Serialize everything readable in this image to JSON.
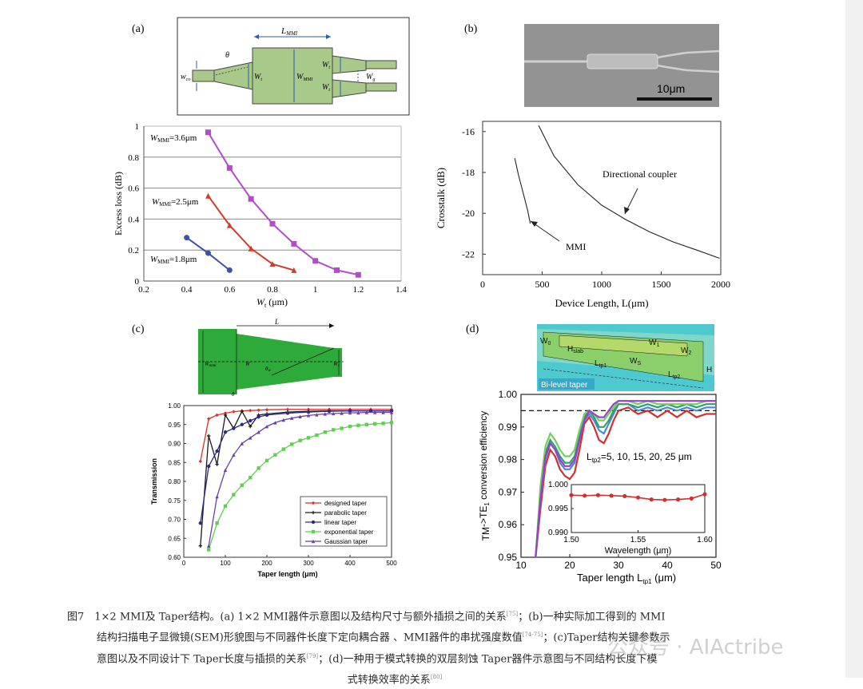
{
  "panels": {
    "a": "(a)",
    "b": "(b)",
    "c": "(c)",
    "d": "(d)"
  },
  "diagram_a": {
    "L_MMI": "L",
    "L_MMI_sub": "MMI",
    "theta": "θ",
    "w_co": "w",
    "w_co_sub": "co",
    "W_t": "W",
    "W_t_sub": "t",
    "W_MMI": "W",
    "W_MMI_sub": "MMI",
    "W_t2": "W",
    "W_t2_sub": "t",
    "W_t3": "W",
    "W_t3_sub": "t",
    "W_g": "W",
    "W_g_sub": "g"
  },
  "sem_b": {
    "scale_bar": "10μm"
  },
  "diagram_c": {
    "L": "L",
    "W_mmi": "W",
    "W_mmi_sub": "mmi",
    "W": "W",
    "theta": "θ",
    "theta_sub": "w",
    "W_s": "W",
    "W_s_sub": "s",
    "theta_bottom": "θ"
  },
  "diagram_d": {
    "W0": "W",
    "W0_sub": "0",
    "W1": "W",
    "W1_sub": "1",
    "W2": "W",
    "W2_sub": "2",
    "Hslab": "H",
    "Hslab_sub": "slab",
    "WS": "W",
    "WS_sub": "S",
    "Ltp1": "L",
    "Ltp1_sub": "tp1",
    "Ltp2": "L",
    "Ltp2_sub": "tp2",
    "H": "H",
    "tag": "Bi-level taper"
  },
  "chart_data": [
    {
      "type": "line",
      "xlabel": "W",
      "xlabel_sub": "t",
      "xlabel_unit": " (μm)",
      "ylabel": "Excess loss (dB)",
      "xlim": [
        0.2,
        1.4
      ],
      "ylim": [
        0,
        1
      ],
      "xticks": [
        "0.2",
        "0.4",
        "0.6",
        "0.8",
        "1",
        "1.2",
        "1.4"
      ],
      "yticks": [
        "0",
        "0.2",
        "0.4",
        "0.6",
        "0.8",
        "1"
      ],
      "grid": "horizontal",
      "series": [
        {
          "name": "W",
          "name_sub": "MMI",
          "name_tail": "=3.6μm",
          "color": "#b44cc9",
          "marker": "square",
          "x": [
            0.5,
            0.6,
            0.7,
            0.8,
            0.9,
            1.0,
            1.1,
            1.2
          ],
          "y": [
            0.96,
            0.73,
            0.53,
            0.37,
            0.24,
            0.13,
            0.07,
            0.04
          ]
        },
        {
          "name": "W",
          "name_sub": "MMI",
          "name_tail": "=2.5μm",
          "color": "#d23a2a",
          "marker": "triangle",
          "x": [
            0.5,
            0.6,
            0.7,
            0.8,
            0.9
          ],
          "y": [
            0.55,
            0.36,
            0.21,
            0.11,
            0.07
          ]
        },
        {
          "name": "W",
          "name_sub": "MMI",
          "name_tail": "=1.8μm",
          "color": "#3a52a8",
          "marker": "circle",
          "x": [
            0.4,
            0.5,
            0.6
          ],
          "y": [
            0.28,
            0.18,
            0.07
          ]
        }
      ]
    },
    {
      "type": "line",
      "xlabel": "Device Length, L(μm)",
      "ylabel": "Crosstalk (dB)",
      "xlim": [
        0,
        2000
      ],
      "ylim": [
        -23,
        -15.5
      ],
      "xticks": [
        "0",
        "500",
        "1000",
        "1500",
        "2000"
      ],
      "yticks": [
        "-16",
        "-18",
        "-20",
        "-22"
      ],
      "series": [
        {
          "name": "MMI",
          "x": [
            270,
            300,
            340,
            380,
            400
          ],
          "y": [
            -17.3,
            -18.1,
            -19.0,
            -19.9,
            -20.5
          ]
        },
        {
          "name": "Directional coupler",
          "x": [
            470,
            600,
            800,
            1000,
            1200,
            1400,
            1600,
            1800,
            1990
          ],
          "y": [
            -15.7,
            -17.2,
            -18.6,
            -19.6,
            -20.3,
            -20.9,
            -21.4,
            -21.8,
            -22.2
          ]
        }
      ],
      "annotations": [
        "Directional coupler",
        "MMI"
      ]
    },
    {
      "type": "line",
      "xlabel": "Taper length (μm)",
      "ylabel": "Transmission",
      "xlim": [
        0,
        500
      ],
      "ylim": [
        0.6,
        1.0
      ],
      "xticks": [
        "0",
        "100",
        "200",
        "300",
        "400",
        "500"
      ],
      "yticks": [
        "0.60",
        "0.65",
        "0.70",
        "0.75",
        "0.80",
        "0.85",
        "0.90",
        "0.95",
        "1.00"
      ],
      "legend": "bottom-right",
      "series": [
        {
          "name": "designed taper",
          "color": "#e0302a",
          "marker": "diamond",
          "x": [
            40,
            60,
            80,
            100,
            120,
            140,
            160,
            180,
            200,
            250,
            300,
            350,
            400,
            450,
            500
          ],
          "y": [
            0.853,
            0.965,
            0.975,
            0.98,
            0.984,
            0.986,
            0.987,
            0.988,
            0.989,
            0.99,
            0.99,
            0.99,
            0.99,
            0.99,
            0.99
          ]
        },
        {
          "name": "parabolic taper",
          "color": "#1a1a1a",
          "marker": "plus",
          "x": [
            40,
            60,
            80,
            100,
            120,
            140,
            160,
            180,
            200,
            250,
            300,
            350,
            400,
            450,
            500
          ],
          "y": [
            0.63,
            0.92,
            0.845,
            0.975,
            0.94,
            0.985,
            0.945,
            0.975,
            0.978,
            0.983,
            0.985,
            0.986,
            0.986,
            0.986,
            0.986
          ]
        },
        {
          "name": "linear taper",
          "color": "#2a2a8a",
          "marker": "circle",
          "x": [
            40,
            60,
            80,
            100,
            120,
            140,
            160,
            180,
            200,
            250,
            300,
            350,
            400,
            450,
            500
          ],
          "y": [
            0.69,
            0.84,
            0.88,
            0.93,
            0.94,
            0.95,
            0.96,
            0.97,
            0.975,
            0.98,
            0.983,
            0.985,
            0.986,
            0.986,
            0.986
          ]
        },
        {
          "name": "exponential taper",
          "color": "#5fcf4f",
          "marker": "square",
          "x": [
            60,
            80,
            100,
            120,
            140,
            160,
            180,
            200,
            220,
            240,
            260,
            280,
            300,
            320,
            340,
            360,
            380,
            400,
            420,
            440,
            460,
            480,
            500
          ],
          "y": [
            0.62,
            0.69,
            0.735,
            0.765,
            0.79,
            0.81,
            0.835,
            0.855,
            0.87,
            0.885,
            0.898,
            0.908,
            0.915,
            0.922,
            0.93,
            0.936,
            0.94,
            0.945,
            0.948,
            0.95,
            0.952,
            0.953,
            0.955
          ]
        },
        {
          "name": "Gaussian taper",
          "color": "#6a3fa8",
          "marker": "tri",
          "x": [
            60,
            80,
            100,
            120,
            140,
            160,
            180,
            200,
            220,
            240,
            260,
            280,
            300,
            320,
            340,
            360,
            380,
            400,
            420,
            440,
            460,
            480,
            500
          ],
          "y": [
            0.63,
            0.76,
            0.83,
            0.87,
            0.9,
            0.915,
            0.93,
            0.945,
            0.955,
            0.962,
            0.967,
            0.971,
            0.974,
            0.976,
            0.978,
            0.979,
            0.98,
            0.981,
            0.981,
            0.982,
            0.982,
            0.982,
            0.982
          ]
        }
      ]
    },
    {
      "type": "line",
      "xlabel": "Taper length L",
      "xlabel_sub": "tp1",
      "xlabel_unit": " (μm)",
      "ylabel": "TM",
      "ylabel_sub0": "0",
      "ylabel_mid": "->TE",
      "ylabel_sub1": "1",
      "ylabel_tail": " conversion efficiency",
      "xlim": [
        10,
        50
      ],
      "ylim": [
        0.95,
        1.0
      ],
      "xticks": [
        "10",
        "20",
        "30",
        "40",
        "50"
      ],
      "yticks": [
        "0.95",
        "0.96",
        "0.97",
        "0.98",
        "0.99",
        "1.00"
      ],
      "reference_line": 0.995,
      "annotation": {
        "text": "L",
        "sub": "tp2",
        "tail": "=5, 10, 15, 20, 25 μm"
      },
      "series": [
        {
          "name": "",
          "color": "#d23030",
          "x": [
            13,
            14,
            15,
            16,
            17,
            18,
            19,
            20,
            21,
            22,
            23,
            24,
            25,
            26,
            27,
            28,
            29,
            30,
            32,
            34,
            36,
            38,
            40,
            42,
            44,
            46,
            48,
            50
          ],
          "y": [
            0.95,
            0.965,
            0.978,
            0.983,
            0.981,
            0.977,
            0.975,
            0.974,
            0.976,
            0.983,
            0.991,
            0.993,
            0.99,
            0.986,
            0.985,
            0.988,
            0.992,
            0.995,
            0.996,
            0.994,
            0.995,
            0.993,
            0.995,
            0.993,
            0.995,
            0.993,
            0.994,
            0.994
          ]
        },
        {
          "name": "",
          "color": "#4a8ad8",
          "x": [
            13,
            14,
            15,
            16,
            17,
            18,
            19,
            20,
            21,
            22,
            23,
            24,
            25,
            26,
            27,
            28,
            29,
            30,
            32,
            34,
            36,
            38,
            40,
            42,
            44,
            46,
            48,
            50
          ],
          "y": [
            0.95,
            0.968,
            0.98,
            0.985,
            0.983,
            0.979,
            0.977,
            0.977,
            0.979,
            0.986,
            0.992,
            0.994,
            0.992,
            0.989,
            0.988,
            0.991,
            0.994,
            0.997,
            0.997,
            0.995,
            0.996,
            0.995,
            0.996,
            0.995,
            0.996,
            0.995,
            0.996,
            0.996
          ]
        },
        {
          "name": "",
          "color": "#2f9f6f",
          "x": [
            13,
            14,
            15,
            16,
            17,
            18,
            19,
            20,
            21,
            22,
            23,
            24,
            25,
            26,
            27,
            28,
            29,
            30,
            32,
            34,
            36,
            38,
            40,
            42,
            44,
            46,
            48,
            50
          ],
          "y": [
            0.95,
            0.97,
            0.982,
            0.986,
            0.984,
            0.981,
            0.979,
            0.979,
            0.981,
            0.987,
            0.993,
            0.995,
            0.993,
            0.99,
            0.99,
            0.992,
            0.995,
            0.997,
            0.997,
            0.996,
            0.997,
            0.996,
            0.997,
            0.996,
            0.997,
            0.996,
            0.997,
            0.997
          ]
        },
        {
          "name": "",
          "color": "#6fd15a",
          "x": [
            13,
            14,
            15,
            16,
            17,
            18,
            19,
            20,
            21,
            22,
            23,
            24,
            25,
            26,
            27,
            28,
            29,
            30,
            32,
            34,
            36,
            38,
            40,
            42,
            44,
            46,
            48,
            50
          ],
          "y": [
            0.95,
            0.972,
            0.984,
            0.988,
            0.986,
            0.983,
            0.981,
            0.981,
            0.983,
            0.989,
            0.994,
            0.995,
            0.994,
            0.992,
            0.992,
            0.994,
            0.996,
            0.998,
            0.998,
            0.997,
            0.998,
            0.997,
            0.997,
            0.997,
            0.997,
            0.997,
            0.998,
            0.998
          ]
        },
        {
          "name": "",
          "color": "#9a3fc8",
          "x": [
            13,
            14,
            15,
            16,
            17,
            18,
            19,
            20,
            21,
            22,
            23,
            24,
            25,
            26,
            27,
            28,
            29,
            30,
            32,
            34,
            36,
            38,
            40,
            42,
            44,
            46,
            48,
            50
          ],
          "y": [
            0.95,
            0.968,
            0.981,
            0.985,
            0.983,
            0.98,
            0.978,
            0.978,
            0.98,
            0.986,
            0.992,
            0.995,
            0.994,
            0.993,
            0.993,
            0.995,
            0.997,
            0.998,
            0.998,
            0.998,
            0.998,
            0.998,
            0.998,
            0.998,
            0.998,
            0.998,
            0.998,
            0.998
          ]
        }
      ],
      "inset": {
        "type": "line",
        "xlabel": "Wavelength (μm)",
        "xlim": [
          1.5,
          1.6
        ],
        "ylim": [
          0.99,
          1.0
        ],
        "xticks": [
          "1.50",
          "1.55",
          "1.60"
        ],
        "yticks": [
          "0.990",
          "0.995",
          "1.000"
        ],
        "series": [
          {
            "name": "",
            "color": "#d23030",
            "marker": "circle",
            "x": [
              1.5,
              1.51,
              1.52,
              1.53,
              1.54,
              1.55,
              1.56,
              1.57,
              1.58,
              1.59,
              1.6
            ],
            "y": [
              0.9978,
              0.9977,
              0.9978,
              0.9977,
              0.9976,
              0.9973,
              0.9969,
              0.9968,
              0.9969,
              0.9971,
              0.998
            ]
          }
        ]
      }
    }
  ],
  "caption": {
    "line1": "图7　1×2 MMI及 Taper结构。(a) 1×2 MMI器件示意图以及结构尺寸与额外插损之间的关系",
    "ref1": "[75]",
    "line1b": "；(b)一种实际加工得到的 MMI",
    "line2": "结构扫描电子显微镜(SEM)形貌图与不同器件长度下定向耦合器 、MMI器件的串扰强度数值",
    "ref2": "[74-75]",
    "line2b": "；(c)Taper结构关键参数示",
    "line3": "意图以及不同设计下 Taper长度与插损的关系",
    "ref3": "[79]",
    "line3b": "；(d)一种用于模式转换的双层刻蚀 Taper器件示意图与不同结构长度下模",
    "line4": "式转换效率的关系",
    "ref4": "[80]"
  },
  "watermark": "公众号 · AIActribe"
}
